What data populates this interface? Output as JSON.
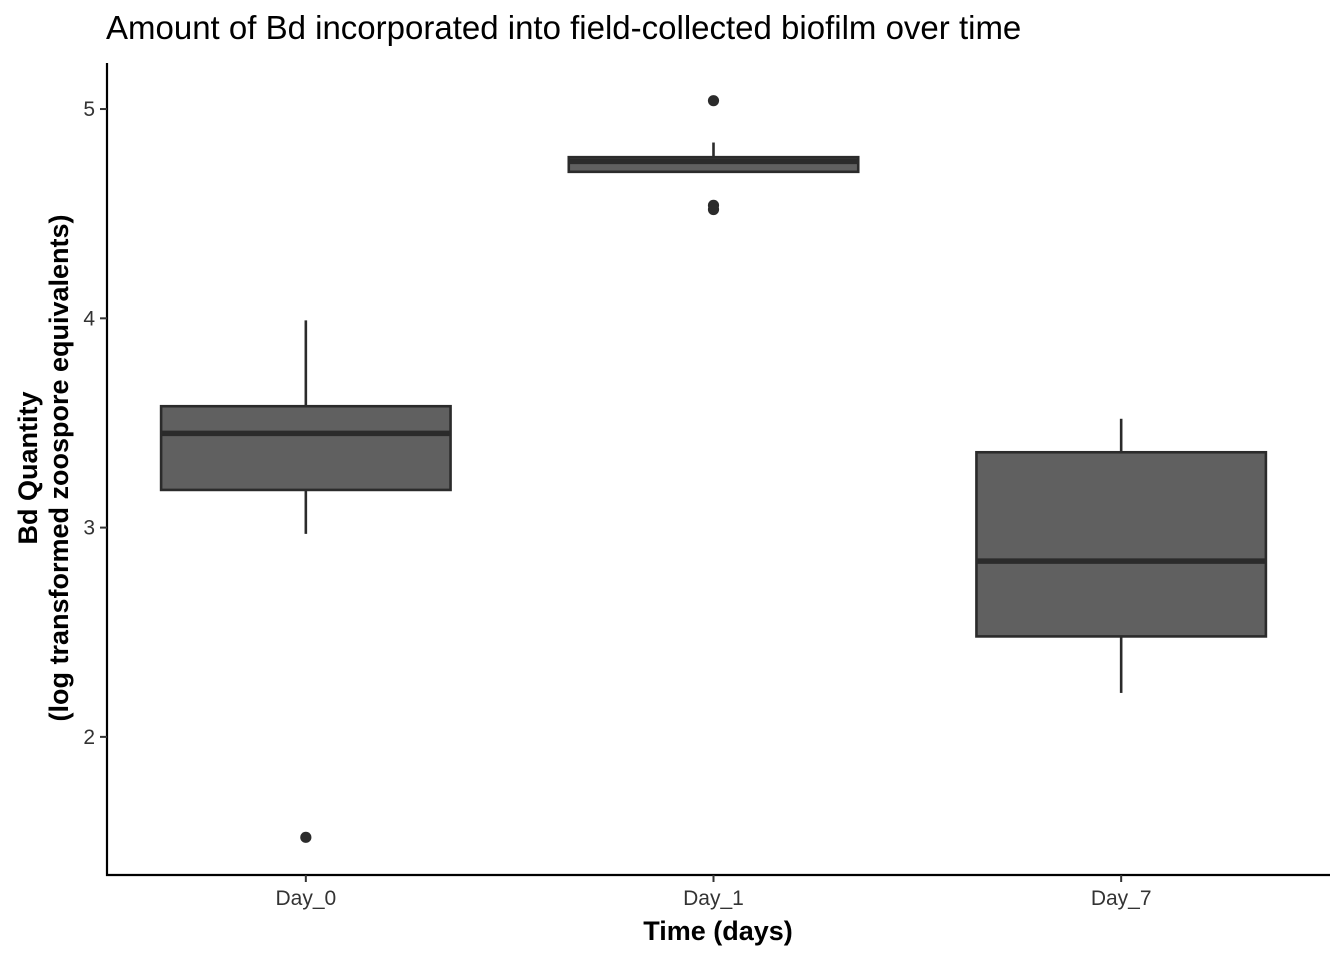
{
  "chart_data": {
    "type": "boxplot",
    "title": "Amount of Bd incorporated into field-collected biofilm over time",
    "xlabel": "Time (days)",
    "ylabel_line1": "Bd Quantity",
    "ylabel_line2": "(log transformed zoospore equivalents)",
    "categories": [
      "Day_0",
      "Day_1",
      "Day_7"
    ],
    "ylim": [
      1.34,
      5.22
    ],
    "yticks": [
      2,
      3,
      4,
      5
    ],
    "grid": false,
    "legend": "none",
    "fill_color": "#606060",
    "line_color": "#2b2b2b",
    "boxes": [
      {
        "category": "Day_0",
        "whisker_low": 2.97,
        "q1": 3.18,
        "median": 3.45,
        "q3": 3.58,
        "whisker_high": 3.99,
        "outliers": [
          1.52
        ]
      },
      {
        "category": "Day_1",
        "whisker_low": 4.7,
        "q1": 4.7,
        "median": 4.75,
        "q3": 4.77,
        "whisker_high": 4.84,
        "outliers": [
          5.04,
          4.54,
          4.52
        ]
      },
      {
        "category": "Day_7",
        "whisker_low": 2.21,
        "q1": 2.48,
        "median": 2.84,
        "q3": 3.36,
        "whisker_high": 3.52,
        "outliers": []
      }
    ]
  }
}
